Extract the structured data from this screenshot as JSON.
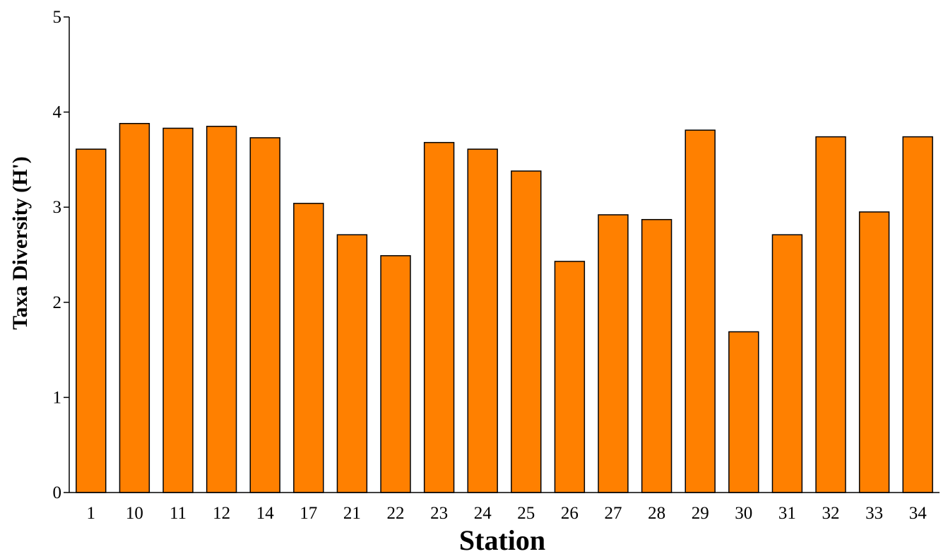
{
  "chart_data": {
    "type": "bar",
    "title": "",
    "xlabel": "Station",
    "ylabel": "Taxa Diversity (H')",
    "ylim": [
      0,
      5
    ],
    "yticks": [
      0,
      1,
      2,
      3,
      4,
      5
    ],
    "grid": false,
    "legend": "none",
    "bar_color": "#ff8000",
    "edge_color": "#000000",
    "categories": [
      "1",
      "10",
      "11",
      "12",
      "14",
      "17",
      "21",
      "22",
      "23",
      "24",
      "25",
      "26",
      "27",
      "28",
      "29",
      "30",
      "31",
      "32",
      "33",
      "34"
    ],
    "values": [
      3.61,
      3.88,
      3.83,
      3.85,
      3.73,
      3.04,
      2.71,
      2.49,
      3.68,
      3.61,
      3.38,
      2.43,
      2.92,
      2.87,
      3.81,
      1.69,
      2.71,
      3.74,
      2.95,
      3.74
    ]
  }
}
